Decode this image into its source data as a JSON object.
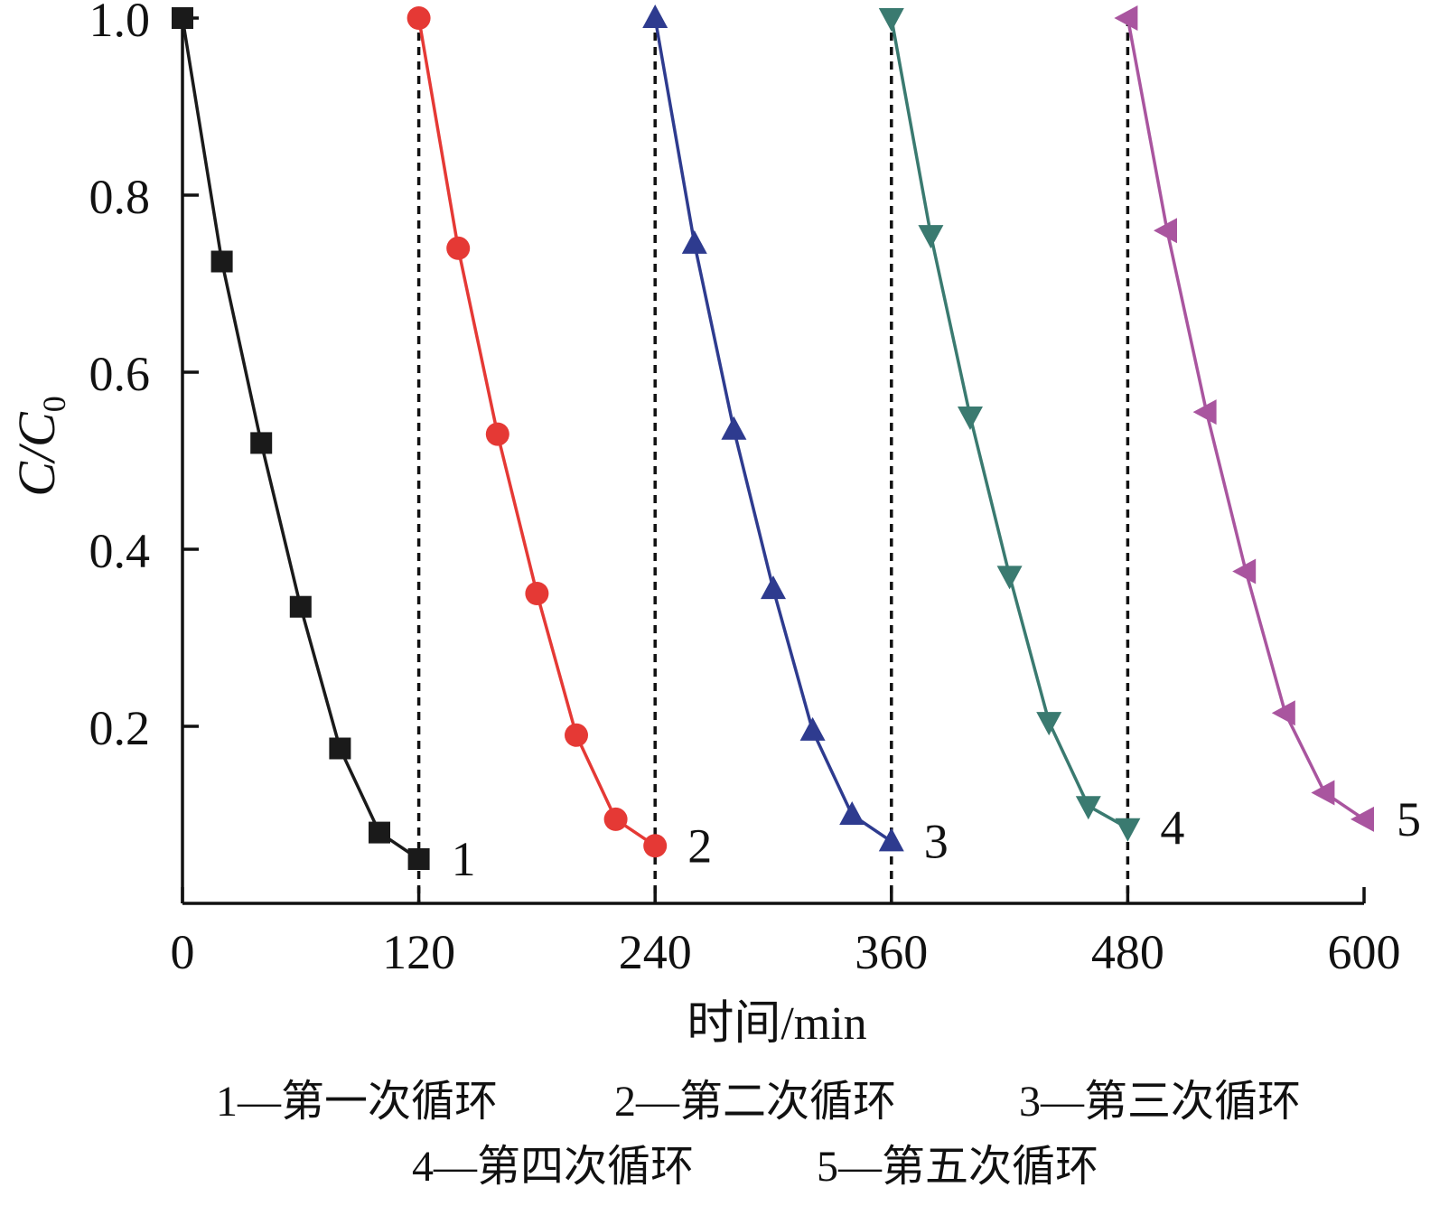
{
  "chart_data": {
    "type": "line",
    "title": "",
    "xlabel": "时间/min",
    "ylabel": {
      "main": "C/C",
      "subscript": "0"
    },
    "xlim": [
      0,
      600
    ],
    "ylim": [
      0,
      1.0
    ],
    "xticks": [
      "0",
      "120",
      "240",
      "360",
      "480",
      "600"
    ],
    "yticks": [
      "0.2",
      "0.4",
      "0.6",
      "0.8",
      "1.0"
    ],
    "grid": false,
    "cycle_dividers_x": [
      120,
      240,
      360,
      480
    ],
    "series": [
      {
        "name": "1",
        "color": "#1a1a1a",
        "marker": "square",
        "x": [
          0,
          20,
          40,
          60,
          80,
          100,
          120
        ],
        "y": [
          1.0,
          0.725,
          0.52,
          0.335,
          0.175,
          0.08,
          0.05
        ]
      },
      {
        "name": "2",
        "color": "#e53935",
        "marker": "circle",
        "x": [
          120,
          140,
          160,
          180,
          200,
          220,
          240
        ],
        "y": [
          1.0,
          0.74,
          0.53,
          0.35,
          0.19,
          0.095,
          0.065
        ]
      },
      {
        "name": "3",
        "color": "#2e3b8f",
        "marker": "triangle-up",
        "x": [
          240,
          260,
          280,
          300,
          320,
          340,
          360
        ],
        "y": [
          1.0,
          0.745,
          0.535,
          0.355,
          0.195,
          0.1,
          0.07
        ]
      },
      {
        "name": "4",
        "color": "#3a7a70",
        "marker": "triangle-down",
        "x": [
          360,
          380,
          400,
          420,
          440,
          460,
          480
        ],
        "y": [
          1.0,
          0.755,
          0.55,
          0.37,
          0.205,
          0.11,
          0.085
        ]
      },
      {
        "name": "5",
        "color": "#a9559f",
        "marker": "triangle-left",
        "x": [
          480,
          500,
          520,
          540,
          560,
          580,
          600
        ],
        "y": [
          1.0,
          0.76,
          0.555,
          0.375,
          0.215,
          0.125,
          0.095
        ]
      }
    ],
    "legend": {
      "position": "bottom",
      "lines": [
        [
          "1—第一次循环",
          "2—第二次循环",
          "3—第三次循环"
        ],
        [
          "4—第四次循环",
          "5—第五次循环"
        ]
      ]
    }
  }
}
